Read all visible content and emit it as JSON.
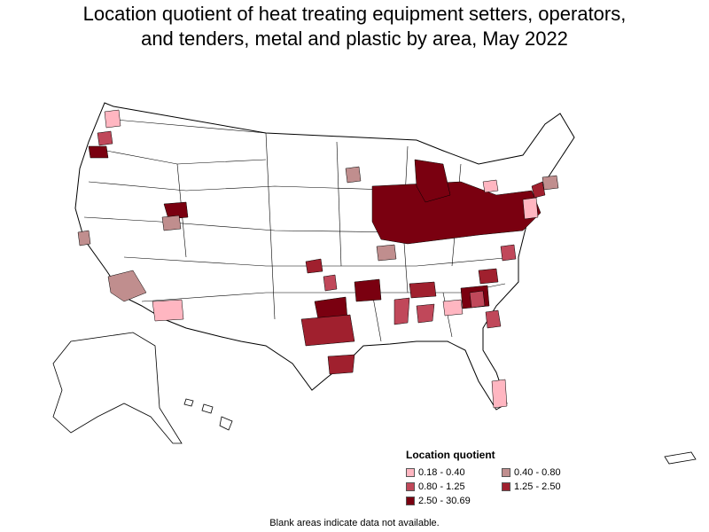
{
  "title": {
    "line1": "Location quotient of heat treating equipment setters, operators,",
    "line2": "and tenders, metal and plastic by area, May 2022"
  },
  "legend": {
    "title": "Location quotient",
    "items": [
      {
        "label": "0.18 - 0.40",
        "color": "#ffb6c1"
      },
      {
        "label": "0.40 - 0.80",
        "color": "#c08e8e"
      },
      {
        "label": "0.80 - 1.25",
        "color": "#c0485a"
      },
      {
        "label": "1.25 - 2.50",
        "color": "#a0202e"
      },
      {
        "label": "2.50 - 30.69",
        "color": "#7a0010"
      }
    ]
  },
  "footnote": "Blank areas indicate data not available.",
  "colors": {
    "border": "#000000",
    "land": "#ffffff",
    "no_data": "#ffffff"
  }
}
